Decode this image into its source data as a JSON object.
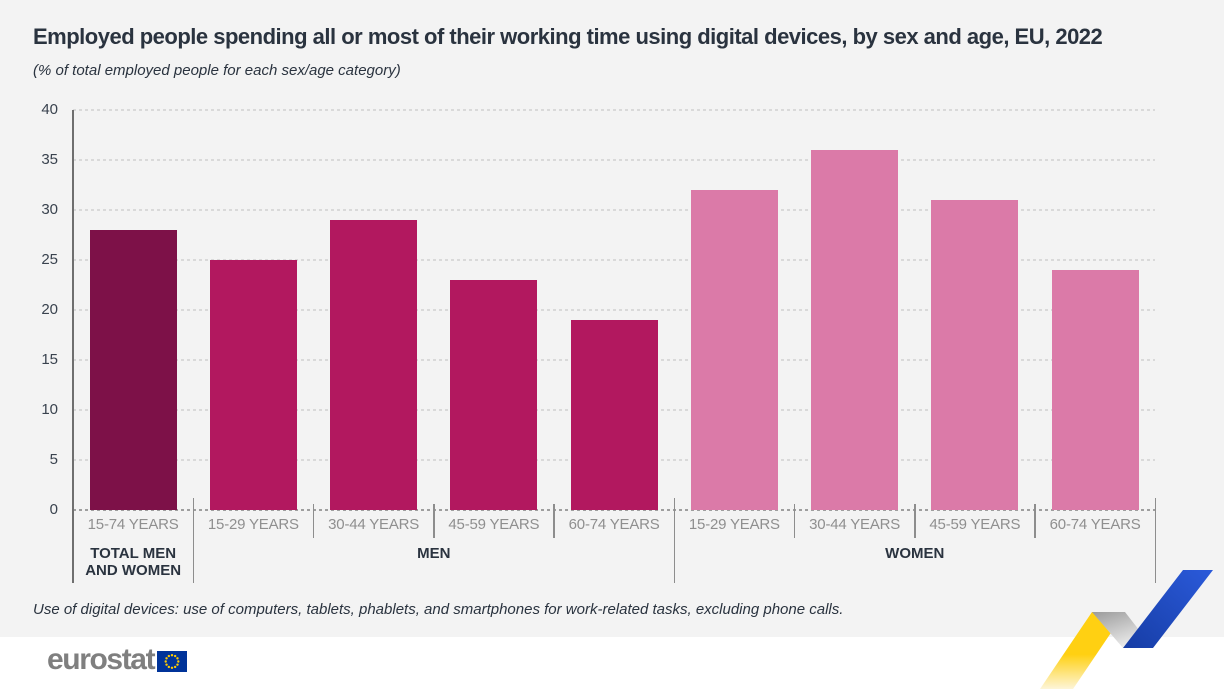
{
  "header": {
    "title": "Employed people spending all or most of their working time using digital devices, by sex and age, EU, 2022",
    "subtitle": "(% of total employed people for each sex/age category)"
  },
  "chart_data": {
    "type": "bar",
    "title": "Employed people spending all or most of their working time using digital devices, by sex and age, EU, 2022",
    "unit_note": "(% of total employed people for each sex/age category)",
    "ylim": [
      0,
      40
    ],
    "yticks": [
      0,
      5,
      10,
      15,
      20,
      25,
      30,
      35,
      40
    ],
    "grid": "horizontal-dashed",
    "legend": "none",
    "groups": [
      {
        "label": "TOTAL MEN AND WOMEN",
        "color": "#7d1148",
        "categories": [
          "15-74 YEARS"
        ],
        "values": [
          28
        ]
      },
      {
        "label": "MEN",
        "color": "#b2185f",
        "categories": [
          "15-29 YEARS",
          "30-44 YEARS",
          "45-59 YEARS",
          "60-74 YEARS"
        ],
        "values": [
          25,
          29,
          23,
          19
        ]
      },
      {
        "label": "WOMEN",
        "color": "#db7aa8",
        "categories": [
          "15-29 YEARS",
          "30-44 YEARS",
          "45-59 YEARS",
          "60-74 YEARS"
        ],
        "values": [
          32,
          36,
          31,
          24
        ]
      }
    ]
  },
  "footnote": "Use of digital devices: use of computers, tablets, phablets, and smartphones for work-related tasks, excluding phone calls.",
  "branding": {
    "logo_text": "eurostat",
    "flag_background": "#003399",
    "flag_stars": "#ffcc00",
    "ribbon_yellow": "#ffd012",
    "ribbon_gray": "#9b9b9b",
    "ribbon_blue": "#2150cb"
  },
  "colors": {
    "background": "#f3f3f3",
    "footer_background": "#ffffff",
    "bar_total": "#7d1148",
    "bar_men": "#b2185f",
    "bar_women": "#db7aa8",
    "text_dark": "#2a333f",
    "text_gray": "#8f8f8f",
    "gridline": "#d9d9d9",
    "baseline": "#9e9e9e",
    "axis": "#6f6f6f"
  }
}
